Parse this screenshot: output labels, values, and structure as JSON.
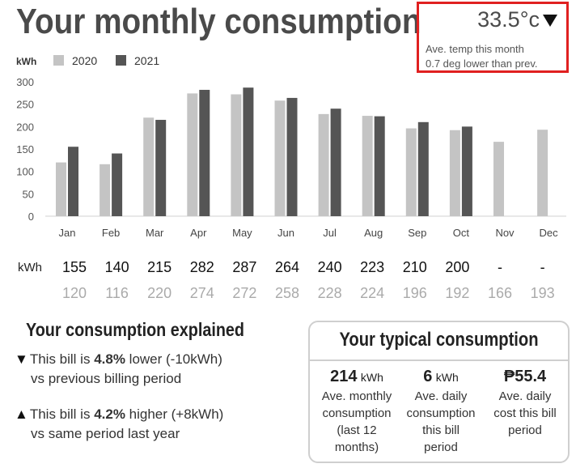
{
  "title": "Your monthly consumption",
  "temperature": {
    "value": "33.5°c",
    "trend_icon": "down-triangle",
    "line1": "Ave. temp this month",
    "line2": "0.7 deg lower than prev."
  },
  "chart_data": {
    "type": "bar",
    "unit_label": "kWh",
    "categories": [
      "Jan",
      "Feb",
      "Mar",
      "Apr",
      "May",
      "Jun",
      "Jul",
      "Aug",
      "Sep",
      "Oct",
      "Nov",
      "Dec"
    ],
    "series": [
      {
        "name": "2020",
        "color": "#c4c4c4",
        "values": [
          120,
          116,
          220,
          274,
          272,
          258,
          228,
          224,
          196,
          192,
          166,
          193
        ]
      },
      {
        "name": "2021",
        "color": "#555555",
        "values": [
          155,
          140,
          215,
          282,
          287,
          264,
          240,
          223,
          210,
          200,
          null,
          null
        ]
      }
    ],
    "ylim": [
      0,
      300
    ],
    "yticks": [
      0,
      50,
      100,
      150,
      200,
      250,
      300
    ],
    "legend_position": "top-left",
    "grid": false
  },
  "kwh_table": {
    "label": "kWh",
    "row_2021": [
      "155",
      "140",
      "215",
      "282",
      "287",
      "264",
      "240",
      "223",
      "210",
      "200",
      "-",
      "-"
    ],
    "row_2020": [
      "120",
      "116",
      "220",
      "274",
      "272",
      "258",
      "228",
      "224",
      "196",
      "192",
      "166",
      "193"
    ]
  },
  "explained": {
    "title": "Your consumption explained",
    "notes": [
      {
        "icon": "down-triangle",
        "arrow": "▼",
        "pre": "This bill is ",
        "pct": "4.8%",
        "post": " lower (-10kWh)",
        "line2": "vs previous billing period"
      },
      {
        "icon": "up-triangle",
        "arrow": "▲",
        "pre": "This bill is ",
        "pct": "4.2%",
        "post": " higher (+8kWh)",
        "line2": "vs same period last year"
      }
    ]
  },
  "typical": {
    "title": "Your typical consumption",
    "stats": [
      {
        "value": "214",
        "unit": "kWh",
        "desc": [
          "Ave. monthly",
          "consumption",
          "(last 12",
          "months)"
        ]
      },
      {
        "value": "6",
        "unit": "kWh",
        "desc": [
          "Ave. daily",
          "consumption",
          "this bill",
          "period"
        ]
      },
      {
        "value": "₱55.4",
        "unit": "",
        "desc": [
          "Ave. daily",
          "cost this bill",
          "period"
        ]
      }
    ]
  }
}
